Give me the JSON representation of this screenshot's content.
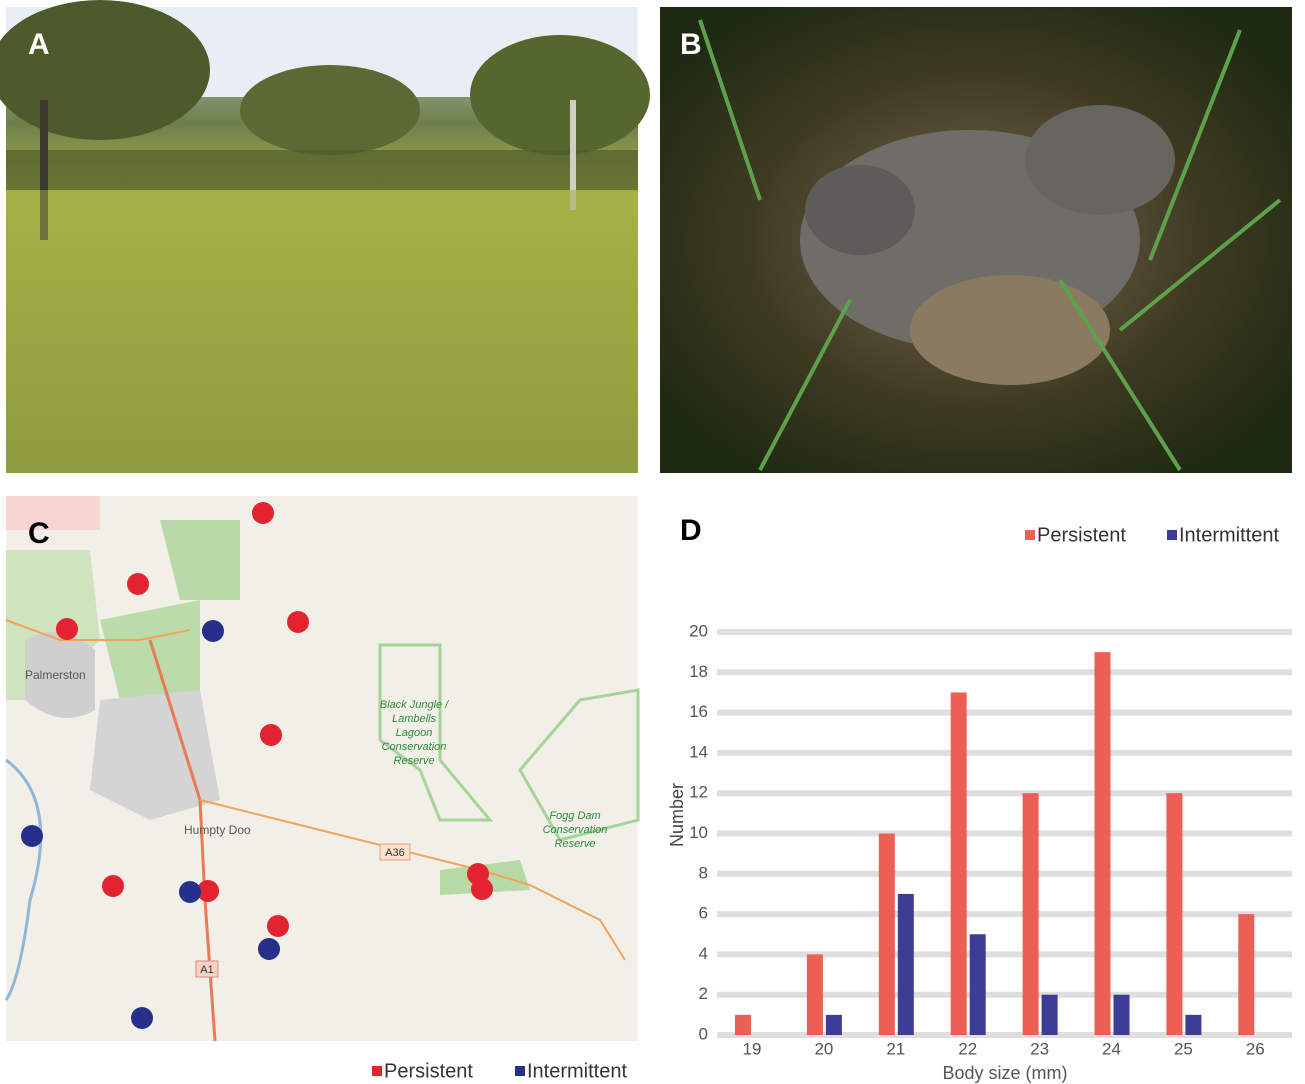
{
  "panels": {
    "a": "A",
    "b": "B",
    "c": "C",
    "d": "D"
  },
  "map": {
    "places": [
      "Palmerston",
      "Humpty Doo"
    ],
    "reserves": [
      [
        "Black Jungle /",
        "Lambells",
        "Lagoon",
        "Conservation",
        "Reserve"
      ],
      [
        "Fogg Dam",
        "Conservation",
        "Reserve"
      ]
    ],
    "roads": [
      "A36",
      "A1"
    ],
    "legend": [
      {
        "name": "Persistent",
        "color": "#e3232f"
      },
      {
        "name": "Intermittent",
        "color": "#262f8a"
      }
    ]
  },
  "chart_data": {
    "type": "bar",
    "x_label": "Body size (mm)",
    "y_label": "Number",
    "categories": [
      "19",
      "20",
      "21",
      "22",
      "23",
      "24",
      "25",
      "26"
    ],
    "series": [
      {
        "name": "Persistent",
        "color": "#ec5f55",
        "values": [
          1,
          4,
          10,
          17,
          12,
          19,
          12,
          6
        ]
      },
      {
        "name": "Intermittent",
        "color": "#3d3c96",
        "values": [
          0,
          1,
          7,
          5,
          2,
          2,
          1,
          0
        ]
      }
    ],
    "ylim": [
      0,
      20
    ],
    "yticks": [
      0,
      2,
      4,
      6,
      8,
      10,
      12,
      14,
      16,
      18,
      20
    ],
    "grid": true,
    "legend": "top-right"
  }
}
